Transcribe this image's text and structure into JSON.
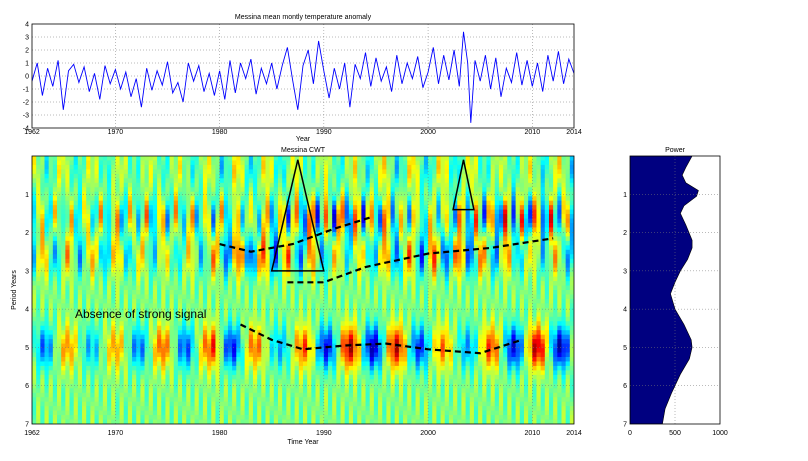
{
  "chart_data": [
    {
      "type": "line",
      "title": "Messina mean montly temperature anomaly",
      "xlabel": "Year",
      "ylabel": "",
      "xlim": [
        1962,
        2014
      ],
      "ylim": [
        -4,
        4
      ],
      "xticks": [
        1962,
        1970,
        1980,
        1990,
        2000,
        2010,
        2014
      ],
      "yticks": [
        -4,
        -3,
        -2,
        -1,
        0,
        1,
        2,
        3,
        4
      ],
      "grid": true,
      "line_color": "#0000ff",
      "series": [
        {
          "values": [
            {
              "x": 1962.0,
              "y": -0.4
            },
            {
              "x": 1962.5,
              "y": 1.0
            },
            {
              "x": 1963.0,
              "y": -1.5
            },
            {
              "x": 1963.5,
              "y": 0.6
            },
            {
              "x": 1964.0,
              "y": -0.8
            },
            {
              "x": 1964.5,
              "y": 1.2
            },
            {
              "x": 1965.0,
              "y": -2.6
            },
            {
              "x": 1965.5,
              "y": 0.4
            },
            {
              "x": 1966.0,
              "y": 0.9
            },
            {
              "x": 1966.5,
              "y": -0.5
            },
            {
              "x": 1967.0,
              "y": 0.7
            },
            {
              "x": 1967.5,
              "y": -1.2
            },
            {
              "x": 1968.0,
              "y": 0.2
            },
            {
              "x": 1968.5,
              "y": -1.8
            },
            {
              "x": 1969.0,
              "y": 0.8
            },
            {
              "x": 1969.5,
              "y": -0.6
            },
            {
              "x": 1970.0,
              "y": 0.5
            },
            {
              "x": 1970.5,
              "y": -1.0
            },
            {
              "x": 1971.0,
              "y": 0.3
            },
            {
              "x": 1971.5,
              "y": -1.6
            },
            {
              "x": 1972.0,
              "y": -0.2
            },
            {
              "x": 1972.5,
              "y": -2.4
            },
            {
              "x": 1973.0,
              "y": 0.6
            },
            {
              "x": 1973.5,
              "y": -1.1
            },
            {
              "x": 1974.0,
              "y": 0.4
            },
            {
              "x": 1974.5,
              "y": -0.7
            },
            {
              "x": 1975.0,
              "y": 1.1
            },
            {
              "x": 1975.5,
              "y": -1.3
            },
            {
              "x": 1976.0,
              "y": -0.5
            },
            {
              "x": 1976.5,
              "y": -2.0
            },
            {
              "x": 1977.0,
              "y": 1.0
            },
            {
              "x": 1977.5,
              "y": -0.4
            },
            {
              "x": 1978.0,
              "y": 0.8
            },
            {
              "x": 1978.5,
              "y": -1.2
            },
            {
              "x": 1979.0,
              "y": 0.2
            },
            {
              "x": 1979.5,
              "y": -1.5
            },
            {
              "x": 1980.0,
              "y": 0.4
            },
            {
              "x": 1980.5,
              "y": -1.8
            },
            {
              "x": 1981.0,
              "y": 1.2
            },
            {
              "x": 1981.5,
              "y": -1.3
            },
            {
              "x": 1982.0,
              "y": 1.0
            },
            {
              "x": 1982.5,
              "y": -0.2
            },
            {
              "x": 1983.0,
              "y": 1.3
            },
            {
              "x": 1983.5,
              "y": -1.4
            },
            {
              "x": 1984.0,
              "y": 0.6
            },
            {
              "x": 1984.5,
              "y": -0.6
            },
            {
              "x": 1985.0,
              "y": 1.0
            },
            {
              "x": 1985.5,
              "y": -1.0
            },
            {
              "x": 1986.0,
              "y": 0.8
            },
            {
              "x": 1986.5,
              "y": 2.2
            },
            {
              "x": 1987.0,
              "y": -0.3
            },
            {
              "x": 1987.5,
              "y": -2.6
            },
            {
              "x": 1988.0,
              "y": 0.8
            },
            {
              "x": 1988.5,
              "y": 2.0
            },
            {
              "x": 1989.0,
              "y": -0.6
            },
            {
              "x": 1989.5,
              "y": 2.7
            },
            {
              "x": 1990.0,
              "y": 0.4
            },
            {
              "x": 1990.5,
              "y": -1.7
            },
            {
              "x": 1991.0,
              "y": 0.6
            },
            {
              "x": 1991.5,
              "y": -1.0
            },
            {
              "x": 1992.0,
              "y": 1.0
            },
            {
              "x": 1992.5,
              "y": -2.4
            },
            {
              "x": 1993.0,
              "y": 0.9
            },
            {
              "x": 1993.5,
              "y": -0.2
            },
            {
              "x": 1994.0,
              "y": 1.8
            },
            {
              "x": 1994.5,
              "y": -0.8
            },
            {
              "x": 1995.0,
              "y": 1.4
            },
            {
              "x": 1995.5,
              "y": -0.4
            },
            {
              "x": 1996.0,
              "y": 0.7
            },
            {
              "x": 1996.5,
              "y": -1.2
            },
            {
              "x": 1997.0,
              "y": 1.6
            },
            {
              "x": 1997.5,
              "y": -0.6
            },
            {
              "x": 1998.0,
              "y": 1.0
            },
            {
              "x": 1998.5,
              "y": -0.2
            },
            {
              "x": 1999.0,
              "y": 1.5
            },
            {
              "x": 1999.5,
              "y": -0.9
            },
            {
              "x": 2000.0,
              "y": 0.3
            },
            {
              "x": 2000.5,
              "y": 2.2
            },
            {
              "x": 2001.0,
              "y": -0.6
            },
            {
              "x": 2001.5,
              "y": 1.6
            },
            {
              "x": 2002.0,
              "y": -0.3
            },
            {
              "x": 2002.5,
              "y": 2.0
            },
            {
              "x": 2003.0,
              "y": -0.8
            },
            {
              "x": 2003.4,
              "y": 3.4
            },
            {
              "x": 2003.8,
              "y": 1.0
            },
            {
              "x": 2004.1,
              "y": -3.6
            },
            {
              "x": 2004.5,
              "y": 1.2
            },
            {
              "x": 2005.0,
              "y": -0.4
            },
            {
              "x": 2005.5,
              "y": 1.6
            },
            {
              "x": 2006.0,
              "y": -1.0
            },
            {
              "x": 2006.5,
              "y": 1.4
            },
            {
              "x": 2007.0,
              "y": -1.6
            },
            {
              "x": 2007.5,
              "y": 0.6
            },
            {
              "x": 2008.0,
              "y": -0.5
            },
            {
              "x": 2008.5,
              "y": 1.8
            },
            {
              "x": 2009.0,
              "y": -0.7
            },
            {
              "x": 2009.5,
              "y": 1.2
            },
            {
              "x": 2010.0,
              "y": -0.8
            },
            {
              "x": 2010.5,
              "y": 1.0
            },
            {
              "x": 2011.0,
              "y": -1.2
            },
            {
              "x": 2011.5,
              "y": 1.6
            },
            {
              "x": 2012.0,
              "y": -0.4
            },
            {
              "x": 2012.5,
              "y": 1.9
            },
            {
              "x": 2013.0,
              "y": -0.6
            },
            {
              "x": 2013.5,
              "y": 1.3
            },
            {
              "x": 2014.0,
              "y": 0.2
            }
          ]
        }
      ]
    },
    {
      "type": "heatmap",
      "title": "Messina CWT",
      "xlabel": "Time Year",
      "ylabel": "Period Years",
      "xlim": [
        1962,
        2014
      ],
      "ylim": [
        0,
        7
      ],
      "y_inverted": true,
      "xticks": [
        1962,
        1970,
        1980,
        1990,
        2000,
        2010,
        2014
      ],
      "yticks": [
        1,
        2,
        3,
        4,
        5,
        6,
        7
      ],
      "grid": true,
      "colormap": "jet",
      "annotation": "Absence of strong signal",
      "dominant_bands": [
        {
          "period": 0.3,
          "strength": 0.3
        },
        {
          "period": 1.6,
          "strength": 0.7
        },
        {
          "period": 2.6,
          "strength": 0.6
        },
        {
          "period": 5.0,
          "strength": 0.8
        }
      ],
      "cone_triangles": [
        {
          "apex": [
            1987.5,
            0.1
          ],
          "base": [
            [
              1985.0,
              3.0
            ],
            [
              1990.0,
              3.0
            ]
          ]
        },
        {
          "apex": [
            2003.4,
            0.1
          ],
          "base": [
            [
              2002.4,
              1.4
            ],
            [
              2004.4,
              1.4
            ]
          ]
        }
      ],
      "dashed_ridges": [
        [
          [
            1980.0,
            2.3
          ],
          [
            1983.0,
            2.5
          ],
          [
            1987.0,
            2.3
          ],
          [
            1991.0,
            1.9
          ],
          [
            1994.5,
            1.6
          ]
        ],
        [
          [
            1986.5,
            3.3
          ],
          [
            1990.0,
            3.3
          ],
          [
            1994.0,
            2.9
          ],
          [
            2000.0,
            2.55
          ],
          [
            2006.0,
            2.4
          ],
          [
            2012.0,
            2.15
          ]
        ],
        [
          [
            1982.0,
            4.4
          ],
          [
            1985.0,
            4.8
          ],
          [
            1988.0,
            5.05
          ],
          [
            1992.0,
            4.95
          ],
          [
            1996.0,
            4.9
          ],
          [
            2000.0,
            5.05
          ],
          [
            2005.0,
            5.15
          ],
          [
            2009.0,
            4.8
          ]
        ]
      ]
    },
    {
      "type": "area",
      "title": "Power",
      "xlabel": "",
      "ylabel": "",
      "xlim": [
        0,
        1000
      ],
      "ylim": [
        0,
        7
      ],
      "y_inverted": true,
      "xticks": [
        0,
        500,
        1000
      ],
      "yticks": [
        1,
        2,
        3,
        4,
        5,
        6,
        7
      ],
      "grid": true,
      "fill_color": "#000080",
      "series": [
        {
          "values": [
            {
              "x": 690,
              "y": 0.0
            },
            {
              "x": 620,
              "y": 0.3
            },
            {
              "x": 580,
              "y": 0.5
            },
            {
              "x": 620,
              "y": 0.7
            },
            {
              "x": 760,
              "y": 0.9
            },
            {
              "x": 740,
              "y": 1.05
            },
            {
              "x": 600,
              "y": 1.3
            },
            {
              "x": 560,
              "y": 1.5
            },
            {
              "x": 620,
              "y": 1.8
            },
            {
              "x": 690,
              "y": 2.2
            },
            {
              "x": 690,
              "y": 2.4
            },
            {
              "x": 640,
              "y": 2.7
            },
            {
              "x": 560,
              "y": 3.0
            },
            {
              "x": 500,
              "y": 3.3
            },
            {
              "x": 450,
              "y": 3.6
            },
            {
              "x": 500,
              "y": 4.0
            },
            {
              "x": 600,
              "y": 4.4
            },
            {
              "x": 680,
              "y": 4.8
            },
            {
              "x": 690,
              "y": 5.0
            },
            {
              "x": 660,
              "y": 5.3
            },
            {
              "x": 560,
              "y": 5.7
            },
            {
              "x": 460,
              "y": 6.2
            },
            {
              "x": 390,
              "y": 6.6
            },
            {
              "x": 360,
              "y": 7.0
            }
          ]
        }
      ]
    }
  ]
}
